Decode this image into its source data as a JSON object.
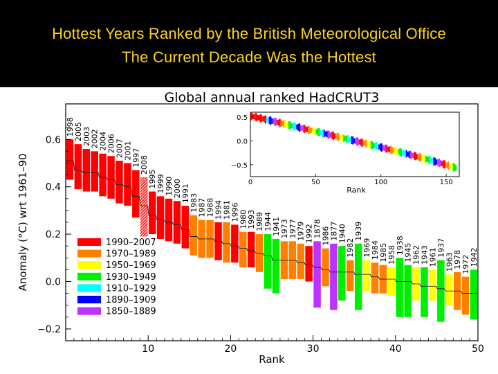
{
  "slide": {
    "title_line1": "Hottest Years Ranked by the British Meteorological Office",
    "title_line2": "The Current Decade Was the Hottest"
  },
  "chart_data": {
    "type": "bar",
    "title": "Global annual ranked HadCRUT3",
    "xlabel": "Rank",
    "ylabel": "Anomaly (°C) wrt 1961–90",
    "xlim": [
      0,
      50
    ],
    "ylim": [
      -0.25,
      0.75
    ],
    "xticks": [
      10,
      20,
      30,
      40,
      50
    ],
    "yticks": [
      -0.2,
      0.0,
      0.2,
      0.4,
      0.6
    ],
    "ytick_labels": [
      "−0.2",
      "0.0",
      "0.2",
      "0.4",
      "0.6"
    ],
    "grid": false,
    "legend_position": "lower-left",
    "legend": [
      {
        "label": "1990–2007",
        "color": "#ff0000"
      },
      {
        "label": "1970–1989",
        "color": "#ff8000"
      },
      {
        "label": "1950–1969",
        "color": "#ffff00"
      },
      {
        "label": "1930–1949",
        "color": "#00ee00"
      },
      {
        "label": "1910–1929",
        "color": "#00ffff"
      },
      {
        "label": "1890–1909",
        "color": "#0000ff"
      },
      {
        "label": "1850–1889",
        "color": "#bb33ff"
      }
    ],
    "bars": [
      {
        "rank": 1,
        "year": "1998",
        "central": 0.51,
        "low": 0.43,
        "high": 0.6,
        "period": "1990–2007"
      },
      {
        "rank": 2,
        "year": "2005",
        "central": 0.47,
        "low": 0.39,
        "high": 0.58,
        "period": "1990–2007"
      },
      {
        "rank": 3,
        "year": "2003",
        "central": 0.46,
        "low": 0.38,
        "high": 0.56,
        "period": "1990–2007"
      },
      {
        "rank": 4,
        "year": "2002",
        "central": 0.46,
        "low": 0.38,
        "high": 0.55,
        "period": "1990–2007"
      },
      {
        "rank": 5,
        "year": "2004",
        "central": 0.44,
        "low": 0.36,
        "high": 0.54,
        "period": "1990–2007"
      },
      {
        "rank": 6,
        "year": "2006",
        "central": 0.43,
        "low": 0.35,
        "high": 0.53,
        "period": "1990–2007"
      },
      {
        "rank": 7,
        "year": "2007",
        "central": 0.41,
        "low": 0.33,
        "high": 0.51,
        "period": "1990–2007"
      },
      {
        "rank": 8,
        "year": "2001",
        "central": 0.4,
        "low": 0.32,
        "high": 0.5,
        "period": "1990–2007"
      },
      {
        "rank": 9,
        "year": "1997",
        "central": 0.36,
        "low": 0.27,
        "high": 0.47,
        "period": "1990–2007"
      },
      {
        "rank": 10,
        "year": "2008",
        "central": 0.32,
        "low": 0.19,
        "high": 0.44,
        "period": "1990–2007",
        "hatched": true
      },
      {
        "rank": 11,
        "year": "1995",
        "central": 0.28,
        "low": 0.2,
        "high": 0.38,
        "period": "1990–2007"
      },
      {
        "rank": 12,
        "year": "1999",
        "central": 0.26,
        "low": 0.18,
        "high": 0.36,
        "period": "1990–2007"
      },
      {
        "rank": 13,
        "year": "1990",
        "central": 0.25,
        "low": 0.17,
        "high": 0.35,
        "period": "1990–2007"
      },
      {
        "rank": 14,
        "year": "2000",
        "central": 0.24,
        "low": 0.16,
        "high": 0.34,
        "period": "1990–2007"
      },
      {
        "rank": 15,
        "year": "1991",
        "central": 0.22,
        "low": 0.14,
        "high": 0.32,
        "period": "1990–2007"
      },
      {
        "rank": 16,
        "year": "1983",
        "central": 0.19,
        "low": 0.11,
        "high": 0.28,
        "period": "1970–1989"
      },
      {
        "rank": 17,
        "year": "1987",
        "central": 0.18,
        "low": 0.1,
        "high": 0.26,
        "period": "1970–1989"
      },
      {
        "rank": 18,
        "year": "1988",
        "central": 0.18,
        "low": 0.1,
        "high": 0.26,
        "period": "1970–1989"
      },
      {
        "rank": 19,
        "year": "1994",
        "central": 0.17,
        "low": 0.09,
        "high": 0.25,
        "period": "1990–2007"
      },
      {
        "rank": 20,
        "year": "1981",
        "central": 0.16,
        "low": 0.08,
        "high": 0.25,
        "period": "1970–1989"
      },
      {
        "rank": 21,
        "year": "1996",
        "central": 0.15,
        "low": 0.08,
        "high": 0.24,
        "period": "1990–2007"
      },
      {
        "rank": 22,
        "year": "1980",
        "central": 0.14,
        "low": 0.06,
        "high": 0.21,
        "period": "1970–1989"
      },
      {
        "rank": 23,
        "year": "1993",
        "central": 0.13,
        "low": 0.06,
        "high": 0.21,
        "period": "1990–2007"
      },
      {
        "rank": 24,
        "year": "1989",
        "central": 0.12,
        "low": 0.04,
        "high": 0.2,
        "period": "1970–1989"
      },
      {
        "rank": 25,
        "year": "1944",
        "central": 0.11,
        "low": -0.03,
        "high": 0.2,
        "period": "1930–1949"
      },
      {
        "rank": 26,
        "year": "1941",
        "central": 0.09,
        "low": -0.05,
        "high": 0.18,
        "period": "1930–1949"
      },
      {
        "rank": 27,
        "year": "1973",
        "central": 0.09,
        "low": 0.01,
        "high": 0.17,
        "period": "1970–1989"
      },
      {
        "rank": 28,
        "year": "1977",
        "central": 0.09,
        "low": 0.01,
        "high": 0.17,
        "period": "1970–1989"
      },
      {
        "rank": 29,
        "year": "1979",
        "central": 0.08,
        "low": 0.01,
        "high": 0.16,
        "period": "1970–1989"
      },
      {
        "rank": 30,
        "year": "1992",
        "central": 0.07,
        "low": 0.0,
        "high": 0.15,
        "period": "1990–2007"
      },
      {
        "rank": 31,
        "year": "1878",
        "central": 0.06,
        "low": -0.11,
        "high": 0.17,
        "period": "1850–1889"
      },
      {
        "rank": 32,
        "year": "1986",
        "central": 0.05,
        "low": -0.02,
        "high": 0.14,
        "period": "1970–1989"
      },
      {
        "rank": 33,
        "year": "1877",
        "central": 0.04,
        "low": -0.12,
        "high": 0.16,
        "period": "1850–1889"
      },
      {
        "rank": 34,
        "year": "1940",
        "central": 0.04,
        "low": -0.08,
        "high": 0.15,
        "period": "1930–1949"
      },
      {
        "rank": 35,
        "year": "1982",
        "central": 0.04,
        "low": -0.04,
        "high": 0.09,
        "period": "1970–1989"
      },
      {
        "rank": 36,
        "year": "1939",
        "central": 0.03,
        "low": -0.12,
        "high": 0.16,
        "period": "1930–1949"
      },
      {
        "rank": 37,
        "year": "1969",
        "central": 0.03,
        "low": -0.04,
        "high": 0.09,
        "period": "1950–1969"
      },
      {
        "rank": 38,
        "year": "1984",
        "central": 0.02,
        "low": -0.05,
        "high": 0.08,
        "period": "1970–1989"
      },
      {
        "rank": 39,
        "year": "1985",
        "central": 0.01,
        "low": -0.05,
        "high": 0.07,
        "period": "1970–1989"
      },
      {
        "rank": 40,
        "year": "1958",
        "central": 0.01,
        "low": -0.06,
        "high": 0.06,
        "period": "1950–1969"
      },
      {
        "rank": 41,
        "year": "1938",
        "central": 0.0,
        "low": -0.15,
        "high": 0.1,
        "period": "1930–1949"
      },
      {
        "rank": 42,
        "year": "1945",
        "central": 0.0,
        "low": -0.15,
        "high": 0.07,
        "period": "1930–1949"
      },
      {
        "rank": 43,
        "year": "1962",
        "central": -0.01,
        "low": -0.08,
        "high": 0.06,
        "period": "1950–1969"
      },
      {
        "rank": 44,
        "year": "1943",
        "central": -0.02,
        "low": -0.15,
        "high": 0.06,
        "period": "1930–1949"
      },
      {
        "rank": 45,
        "year": "1961",
        "central": -0.02,
        "low": -0.08,
        "high": 0.05,
        "period": "1950–1969"
      },
      {
        "rank": 46,
        "year": "1937",
        "central": -0.03,
        "low": -0.17,
        "high": 0.09,
        "period": "1930–1949"
      },
      {
        "rank": 47,
        "year": "1963",
        "central": -0.04,
        "low": -0.1,
        "high": 0.03,
        "period": "1950–1969"
      },
      {
        "rank": 48,
        "year": "1978",
        "central": -0.04,
        "low": -0.12,
        "high": 0.04,
        "period": "1970–1989"
      },
      {
        "rank": 49,
        "year": "1972",
        "central": -0.05,
        "low": -0.14,
        "high": 0.02,
        "period": "1970–1989"
      },
      {
        "rank": 50,
        "year": "1942",
        "central": -0.05,
        "low": -0.16,
        "high": 0.05,
        "period": "1930–1949"
      }
    ],
    "inset": {
      "xlabel": "Rank",
      "xlim": [
        0,
        160
      ],
      "ylim": [
        -0.75,
        0.6
      ],
      "xticks": [
        0,
        50,
        100,
        150
      ],
      "yticks": [
        0.5,
        0.0,
        -0.5
      ],
      "ytick_labels": [
        "0.5",
        "0.0",
        "−0.5"
      ]
    }
  }
}
